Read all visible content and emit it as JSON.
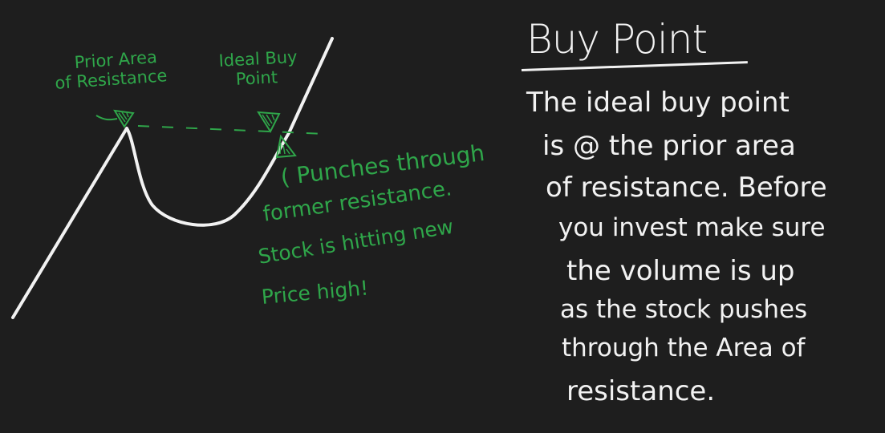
{
  "diagram": {
    "labels": {
      "prior_area_line1": "Prior Area",
      "prior_area_line2": "of Resistance",
      "ideal_buy_line1": "Ideal Buy",
      "ideal_buy_line2": "Point",
      "note_line1": "( Punches through",
      "note_line2": "former resistance.",
      "note_line3": "Stock is hitting new",
      "note_line4": "Price high!"
    },
    "colors": {
      "background": "#1e1e1e",
      "chalk": "#f2f2f2",
      "annotation_green": "#2fa64a"
    }
  },
  "explanation": {
    "heading": "Buy Point",
    "lines": [
      "The ideal buy point",
      "is @ the prior area",
      "of resistance. Before",
      "you invest make sure",
      "the volume is up",
      "as the stock pushes",
      "through the Area of",
      "resistance."
    ]
  }
}
